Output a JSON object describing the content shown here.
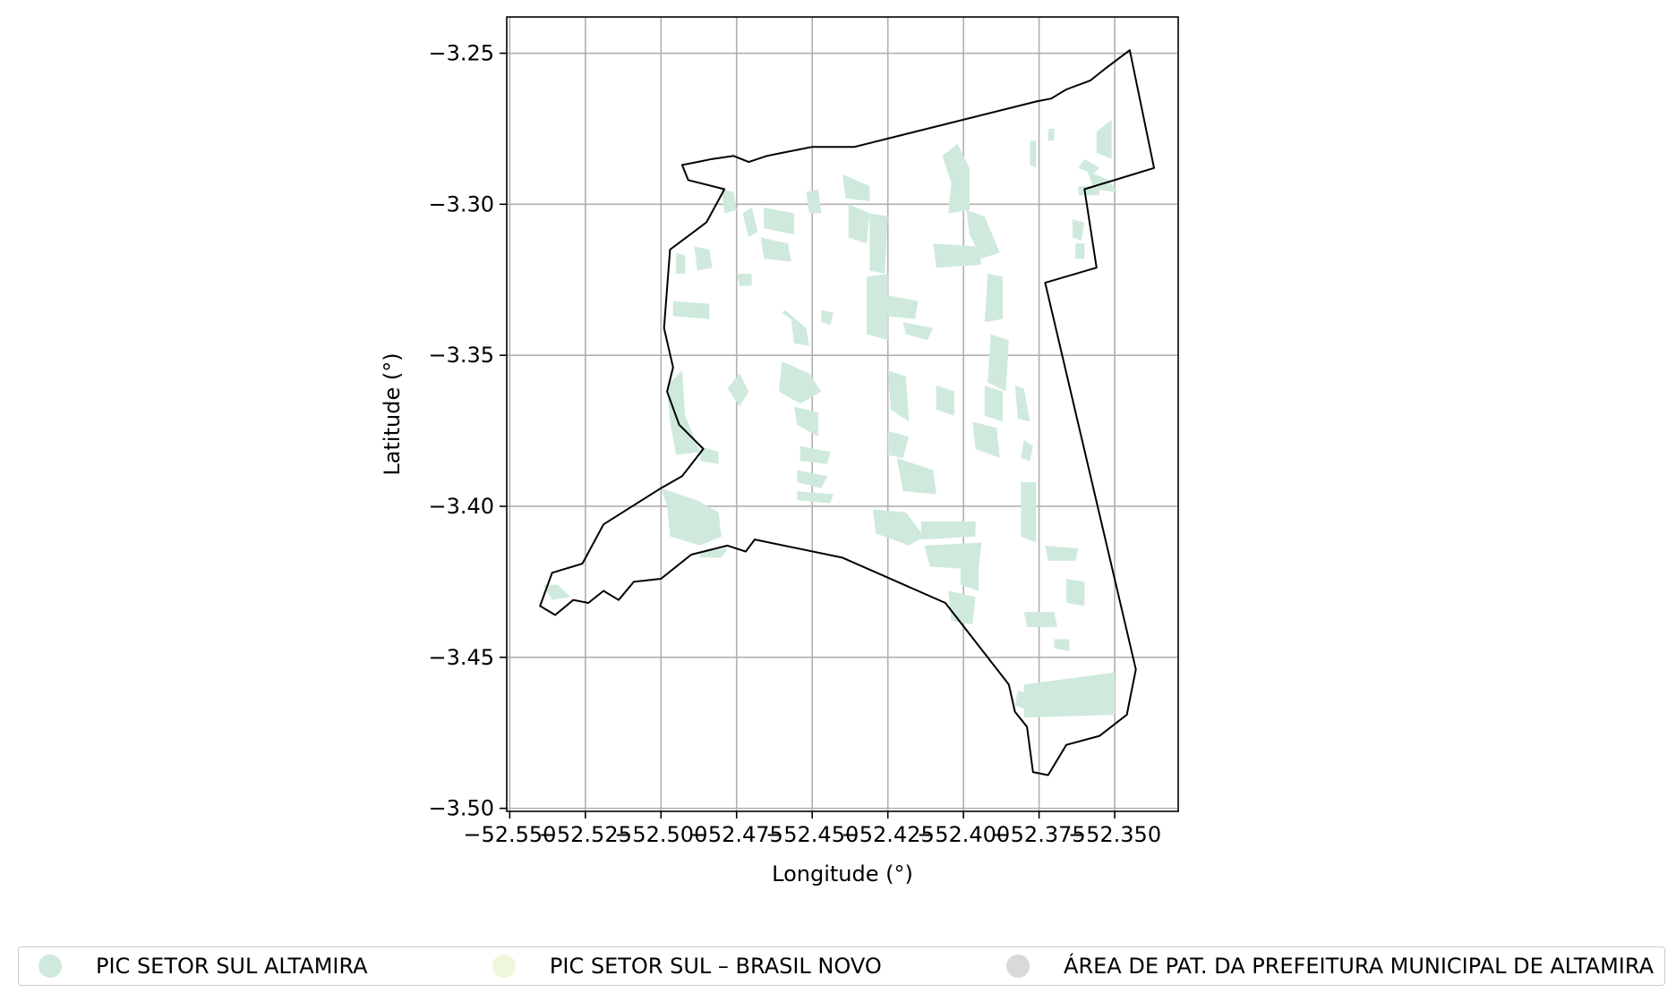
{
  "chart_data": {
    "type": "map",
    "xlabel": "Longitude (°)",
    "ylabel": "Latitude (°)",
    "xlim": [
      -52.551,
      -52.329
    ],
    "ylim": [
      -3.501,
      -3.238
    ],
    "xticks": [
      -52.55,
      -52.525,
      -52.5,
      -52.475,
      -52.45,
      -52.425,
      -52.4,
      -52.375,
      -52.35
    ],
    "xtick_labels": [
      "−52.550",
      "−52.525",
      "−52.500",
      "−52.475",
      "−52.450",
      "−52.425",
      "−52.400",
      "−52.375",
      "−52.350"
    ],
    "yticks": [
      -3.25,
      -3.3,
      -3.35,
      -3.4,
      -3.45,
      -3.5
    ],
    "ytick_labels": [
      "−3.25",
      "−3.30",
      "−3.35",
      "−3.40",
      "−3.45",
      "−3.50"
    ],
    "grid": true,
    "legend_position": "bottom",
    "boundary": [
      [
        -52.345,
        -3.249
      ],
      [
        -52.337,
        -3.288
      ],
      [
        -52.36,
        -3.295
      ],
      [
        -52.356,
        -3.321
      ],
      [
        -52.373,
        -3.326
      ],
      [
        -52.343,
        -3.454
      ],
      [
        -52.346,
        -3.469
      ],
      [
        -52.355,
        -3.476
      ],
      [
        -52.366,
        -3.479
      ],
      [
        -52.372,
        -3.489
      ],
      [
        -52.377,
        -3.488
      ],
      [
        -52.379,
        -3.473
      ],
      [
        -52.383,
        -3.468
      ],
      [
        -52.385,
        -3.459
      ],
      [
        -52.406,
        -3.432
      ],
      [
        -52.44,
        -3.417
      ],
      [
        -52.469,
        -3.411
      ],
      [
        -52.472,
        -3.415
      ],
      [
        -52.478,
        -3.413
      ],
      [
        -52.49,
        -3.416
      ],
      [
        -52.5,
        -3.424
      ],
      [
        -52.509,
        -3.425
      ],
      [
        -52.514,
        -3.431
      ],
      [
        -52.519,
        -3.428
      ],
      [
        -52.524,
        -3.432
      ],
      [
        -52.529,
        -3.431
      ],
      [
        -52.535,
        -3.436
      ],
      [
        -52.54,
        -3.433
      ],
      [
        -52.536,
        -3.422
      ],
      [
        -52.526,
        -3.419
      ],
      [
        -52.519,
        -3.406
      ],
      [
        -52.5,
        -3.394
      ],
      [
        -52.493,
        -3.39
      ],
      [
        -52.486,
        -3.381
      ],
      [
        -52.494,
        -3.373
      ],
      [
        -52.498,
        -3.362
      ],
      [
        -52.496,
        -3.354
      ],
      [
        -52.499,
        -3.341
      ],
      [
        -52.497,
        -3.315
      ],
      [
        -52.485,
        -3.306
      ],
      [
        -52.479,
        -3.295
      ],
      [
        -52.491,
        -3.292
      ],
      [
        -52.493,
        -3.287
      ],
      [
        -52.488,
        -3.286
      ],
      [
        -52.483,
        -3.285
      ],
      [
        -52.476,
        -3.284
      ],
      [
        -52.471,
        -3.286
      ],
      [
        -52.465,
        -3.284
      ],
      [
        -52.46,
        -3.283
      ],
      [
        -52.45,
        -3.281
      ],
      [
        -52.436,
        -3.281
      ],
      [
        -52.376,
        -3.266
      ],
      [
        -52.371,
        -3.265
      ],
      [
        -52.366,
        -3.262
      ],
      [
        -52.358,
        -3.259
      ],
      [
        -52.353,
        -3.255
      ],
      [
        -52.345,
        -3.249
      ]
    ],
    "boundary_color": "#000000",
    "series": [
      {
        "name": "PIC SETOR SUL ALTAMIRA",
        "color": "#cfeadc"
      },
      {
        "name": "PIC SETOR SUL – BRASIL NOVO",
        "color": "#eef7da"
      },
      {
        "name": "ÁREA DE PAT. DA PREFEITURA MUNICIPAL DE ALTAMIRA",
        "color": "#d9d9d9"
      }
    ],
    "patches": [
      [
        [
          -52.5,
          -3.394
        ],
        [
          -52.488,
          -3.398
        ],
        [
          -52.481,
          -3.402
        ],
        [
          -52.48,
          -3.41
        ],
        [
          -52.487,
          -3.413
        ],
        [
          -52.497,
          -3.41
        ],
        [
          -52.498,
          -3.4
        ]
      ],
      [
        [
          -52.498,
          -3.36
        ],
        [
          -52.493,
          -3.355
        ],
        [
          -52.492,
          -3.37
        ],
        [
          -52.487,
          -3.382
        ],
        [
          -52.495,
          -3.383
        ],
        [
          -52.497,
          -3.372
        ]
      ],
      [
        [
          -52.496,
          -3.332
        ],
        [
          -52.484,
          -3.333
        ],
        [
          -52.484,
          -3.338
        ],
        [
          -52.496,
          -3.337
        ]
      ],
      [
        [
          -52.48,
          -3.295
        ],
        [
          -52.479,
          -3.303
        ],
        [
          -52.475,
          -3.302
        ],
        [
          -52.476,
          -3.296
        ]
      ],
      [
        [
          -52.473,
          -3.303
        ],
        [
          -52.47,
          -3.301
        ],
        [
          -52.468,
          -3.309
        ],
        [
          -52.471,
          -3.311
        ]
      ],
      [
        [
          -52.466,
          -3.301
        ],
        [
          -52.456,
          -3.303
        ],
        [
          -52.456,
          -3.31
        ],
        [
          -52.466,
          -3.308
        ]
      ],
      [
        [
          -52.467,
          -3.311
        ],
        [
          -52.458,
          -3.313
        ],
        [
          -52.457,
          -3.319
        ],
        [
          -52.466,
          -3.318
        ]
      ],
      [
        [
          -52.452,
          -3.296
        ],
        [
          -52.448,
          -3.295
        ],
        [
          -52.447,
          -3.303
        ],
        [
          -52.451,
          -3.303
        ]
      ],
      [
        [
          -52.46,
          -3.336
        ],
        [
          -52.457,
          -3.338
        ],
        [
          -52.456,
          -3.346
        ],
        [
          -52.451,
          -3.347
        ],
        [
          -52.452,
          -3.341
        ],
        [
          -52.459,
          -3.335
        ]
      ],
      [
        [
          -52.46,
          -3.352
        ],
        [
          -52.451,
          -3.356
        ],
        [
          -52.447,
          -3.362
        ],
        [
          -52.454,
          -3.366
        ],
        [
          -52.461,
          -3.362
        ]
      ],
      [
        [
          -52.474,
          -3.356
        ],
        [
          -52.471,
          -3.362
        ],
        [
          -52.474,
          -3.367
        ],
        [
          -52.478,
          -3.361
        ]
      ],
      [
        [
          -52.456,
          -3.367
        ],
        [
          -52.448,
          -3.369
        ],
        [
          -52.448,
          -3.377
        ],
        [
          -52.455,
          -3.373
        ]
      ],
      [
        [
          -52.454,
          -3.38
        ],
        [
          -52.444,
          -3.382
        ],
        [
          -52.445,
          -3.386
        ],
        [
          -52.454,
          -3.385
        ]
      ],
      [
        [
          -52.455,
          -3.388
        ],
        [
          -52.445,
          -3.39
        ],
        [
          -52.447,
          -3.394
        ],
        [
          -52.455,
          -3.392
        ]
      ],
      [
        [
          -52.44,
          -3.29
        ],
        [
          -52.431,
          -3.294
        ],
        [
          -52.431,
          -3.299
        ],
        [
          -52.439,
          -3.298
        ]
      ],
      [
        [
          -52.438,
          -3.3
        ],
        [
          -52.431,
          -3.303
        ],
        [
          -52.432,
          -3.313
        ],
        [
          -52.438,
          -3.311
        ]
      ],
      [
        [
          -52.431,
          -3.303
        ],
        [
          -52.425,
          -3.304
        ],
        [
          -52.426,
          -3.323
        ],
        [
          -52.431,
          -3.322
        ]
      ],
      [
        [
          -52.432,
          -3.324
        ],
        [
          -52.425,
          -3.323
        ],
        [
          -52.425,
          -3.345
        ],
        [
          -52.432,
          -3.343
        ]
      ],
      [
        [
          -52.426,
          -3.33
        ],
        [
          -52.415,
          -3.332
        ],
        [
          -52.416,
          -3.338
        ],
        [
          -52.426,
          -3.337
        ]
      ],
      [
        [
          -52.42,
          -3.339
        ],
        [
          -52.41,
          -3.341
        ],
        [
          -52.412,
          -3.345
        ],
        [
          -52.419,
          -3.343
        ]
      ],
      [
        [
          -52.425,
          -3.355
        ],
        [
          -52.419,
          -3.357
        ],
        [
          -52.418,
          -3.372
        ],
        [
          -52.424,
          -3.368
        ]
      ],
      [
        [
          -52.425,
          -3.375
        ],
        [
          -52.418,
          -3.377
        ],
        [
          -52.42,
          -3.384
        ],
        [
          -52.425,
          -3.383
        ]
      ],
      [
        [
          -52.422,
          -3.384
        ],
        [
          -52.41,
          -3.388
        ],
        [
          -52.409,
          -3.396
        ],
        [
          -52.42,
          -3.395
        ]
      ],
      [
        [
          -52.43,
          -3.401
        ],
        [
          -52.419,
          -3.402
        ],
        [
          -52.413,
          -3.41
        ],
        [
          -52.418,
          -3.413
        ],
        [
          -52.429,
          -3.409
        ]
      ],
      [
        [
          -52.409,
          -3.36
        ],
        [
          -52.403,
          -3.362
        ],
        [
          -52.403,
          -3.37
        ],
        [
          -52.409,
          -3.368
        ]
      ],
      [
        [
          -52.414,
          -3.405
        ],
        [
          -52.396,
          -3.405
        ],
        [
          -52.396,
          -3.41
        ],
        [
          -52.414,
          -3.411
        ]
      ],
      [
        [
          -52.413,
          -3.413
        ],
        [
          -52.394,
          -3.412
        ],
        [
          -52.395,
          -3.421
        ],
        [
          -52.411,
          -3.42
        ]
      ],
      [
        [
          -52.407,
          -3.284
        ],
        [
          -52.404,
          -3.293
        ],
        [
          -52.405,
          -3.303
        ],
        [
          -52.398,
          -3.302
        ],
        [
          -52.398,
          -3.288
        ],
        [
          -52.402,
          -3.28
        ]
      ],
      [
        [
          -52.41,
          -3.313
        ],
        [
          -52.395,
          -3.314
        ],
        [
          -52.394,
          -3.32
        ],
        [
          -52.409,
          -3.321
        ]
      ],
      [
        [
          -52.399,
          -3.302
        ],
        [
          -52.393,
          -3.304
        ],
        [
          -52.388,
          -3.316
        ],
        [
          -52.394,
          -3.318
        ],
        [
          -52.398,
          -3.31
        ]
      ],
      [
        [
          -52.392,
          -3.323
        ],
        [
          -52.387,
          -3.324
        ],
        [
          -52.387,
          -3.338
        ],
        [
          -52.393,
          -3.339
        ]
      ],
      [
        [
          -52.391,
          -3.343
        ],
        [
          -52.385,
          -3.345
        ],
        [
          -52.386,
          -3.362
        ],
        [
          -52.392,
          -3.359
        ]
      ],
      [
        [
          -52.393,
          -3.36
        ],
        [
          -52.387,
          -3.362
        ],
        [
          -52.387,
          -3.372
        ],
        [
          -52.393,
          -3.37
        ]
      ],
      [
        [
          -52.397,
          -3.372
        ],
        [
          -52.389,
          -3.374
        ],
        [
          -52.388,
          -3.384
        ],
        [
          -52.396,
          -3.381
        ]
      ],
      [
        [
          -52.383,
          -3.36
        ],
        [
          -52.38,
          -3.361
        ],
        [
          -52.378,
          -3.372
        ],
        [
          -52.382,
          -3.371
        ]
      ],
      [
        [
          -52.38,
          -3.378
        ],
        [
          -52.377,
          -3.38
        ],
        [
          -52.378,
          -3.385
        ],
        [
          -52.381,
          -3.384
        ]
      ],
      [
        [
          -52.381,
          -3.392
        ],
        [
          -52.376,
          -3.392
        ],
        [
          -52.376,
          -3.412
        ],
        [
          -52.381,
          -3.41
        ]
      ],
      [
        [
          -52.401,
          -3.419
        ],
        [
          -52.395,
          -3.42
        ],
        [
          -52.395,
          -3.428
        ],
        [
          -52.401,
          -3.426
        ]
      ],
      [
        [
          -52.405,
          -3.428
        ],
        [
          -52.396,
          -3.43
        ],
        [
          -52.397,
          -3.439
        ],
        [
          -52.404,
          -3.438
        ]
      ],
      [
        [
          -52.373,
          -3.413
        ],
        [
          -52.362,
          -3.414
        ],
        [
          -52.363,
          -3.418
        ],
        [
          -52.372,
          -3.418
        ]
      ],
      [
        [
          -52.366,
          -3.424
        ],
        [
          -52.36,
          -3.425
        ],
        [
          -52.36,
          -3.433
        ],
        [
          -52.366,
          -3.432
        ]
      ],
      [
        [
          -52.38,
          -3.435
        ],
        [
          -52.37,
          -3.435
        ],
        [
          -52.369,
          -3.44
        ],
        [
          -52.379,
          -3.44
        ]
      ],
      [
        [
          -52.37,
          -3.444
        ],
        [
          -52.365,
          -3.444
        ],
        [
          -52.365,
          -3.448
        ],
        [
          -52.37,
          -3.447
        ]
      ],
      [
        [
          -52.38,
          -3.459
        ],
        [
          -52.35,
          -3.455
        ],
        [
          -52.35,
          -3.469
        ],
        [
          -52.38,
          -3.47
        ]
      ],
      [
        [
          -52.382,
          -3.461
        ],
        [
          -52.379,
          -3.462
        ],
        [
          -52.38,
          -3.467
        ],
        [
          -52.383,
          -3.466
        ]
      ],
      [
        [
          -52.362,
          -3.294
        ],
        [
          -52.355,
          -3.294
        ],
        [
          -52.355,
          -3.297
        ],
        [
          -52.362,
          -3.297
        ]
      ],
      [
        [
          -52.359,
          -3.289
        ],
        [
          -52.352,
          -3.292
        ],
        [
          -52.349,
          -3.296
        ],
        [
          -52.357,
          -3.295
        ]
      ],
      [
        [
          -52.356,
          -3.276
        ],
        [
          -52.351,
          -3.272
        ],
        [
          -52.351,
          -3.285
        ],
        [
          -52.356,
          -3.283
        ]
      ],
      [
        [
          -52.364,
          -3.305
        ],
        [
          -52.36,
          -3.306
        ],
        [
          -52.361,
          -3.312
        ],
        [
          -52.364,
          -3.311
        ]
      ],
      [
        [
          -52.363,
          -3.313
        ],
        [
          -52.36,
          -3.313
        ],
        [
          -52.36,
          -3.318
        ],
        [
          -52.363,
          -3.318
        ]
      ],
      [
        [
          -52.36,
          -3.285
        ],
        [
          -52.355,
          -3.288
        ],
        [
          -52.357,
          -3.29
        ],
        [
          -52.362,
          -3.288
        ]
      ],
      [
        [
          -52.372,
          -3.275
        ],
        [
          -52.37,
          -3.275
        ],
        [
          -52.37,
          -3.279
        ],
        [
          -52.372,
          -3.279
        ]
      ],
      [
        [
          -52.378,
          -3.279
        ],
        [
          -52.376,
          -3.279
        ],
        [
          -52.376,
          -3.288
        ],
        [
          -52.378,
          -3.287
        ]
      ],
      [
        [
          -52.489,
          -3.314
        ],
        [
          -52.484,
          -3.315
        ],
        [
          -52.483,
          -3.321
        ],
        [
          -52.488,
          -3.322
        ]
      ],
      [
        [
          -52.495,
          -3.316
        ],
        [
          -52.492,
          -3.317
        ],
        [
          -52.492,
          -3.323
        ],
        [
          -52.495,
          -3.323
        ]
      ],
      [
        [
          -52.475,
          -3.323
        ],
        [
          -52.47,
          -3.323
        ],
        [
          -52.47,
          -3.327
        ],
        [
          -52.474,
          -3.327
        ]
      ],
      [
        [
          -52.487,
          -3.38
        ],
        [
          -52.481,
          -3.382
        ],
        [
          -52.481,
          -3.386
        ],
        [
          -52.487,
          -3.385
        ]
      ],
      [
        [
          -52.539,
          -3.426
        ],
        [
          -52.534,
          -3.426
        ],
        [
          -52.53,
          -3.43
        ],
        [
          -52.536,
          -3.431
        ]
      ],
      [
        [
          -52.455,
          -3.395
        ],
        [
          -52.443,
          -3.396
        ],
        [
          -52.444,
          -3.399
        ],
        [
          -52.455,
          -3.398
        ]
      ],
      [
        [
          -52.487,
          -3.415
        ],
        [
          -52.478,
          -3.414
        ],
        [
          -52.48,
          -3.417
        ],
        [
          -52.487,
          -3.417
        ]
      ],
      [
        [
          -52.447,
          -3.335
        ],
        [
          -52.443,
          -3.336
        ],
        [
          -52.444,
          -3.34
        ],
        [
          -52.447,
          -3.339
        ]
      ]
    ]
  },
  "legend": {
    "items": [
      {
        "label": "PIC SETOR SUL ALTAMIRA",
        "color": "#cfeadc"
      },
      {
        "label": "PIC SETOR SUL – BRASIL NOVO",
        "color": "#eef7da"
      },
      {
        "label": "ÁREA DE PAT. DA PREFEITURA MUNICIPAL DE ALTAMIRA",
        "color": "#d9d9d9"
      }
    ]
  }
}
